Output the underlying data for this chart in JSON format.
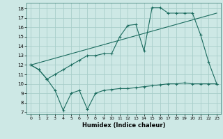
{
  "xlabel": "Humidex (Indice chaleur)",
  "background_color": "#cde8e5",
  "grid_color": "#a8ceca",
  "line_color": "#1a6b5e",
  "xlim": [
    -0.5,
    23.5
  ],
  "ylim": [
    6.8,
    18.6
  ],
  "yticks": [
    7,
    8,
    9,
    10,
    11,
    12,
    13,
    14,
    15,
    16,
    17,
    18
  ],
  "xticks": [
    0,
    1,
    2,
    3,
    4,
    5,
    6,
    7,
    8,
    9,
    10,
    11,
    12,
    13,
    14,
    15,
    16,
    17,
    18,
    19,
    20,
    21,
    22,
    23
  ],
  "line1_x": [
    0,
    1,
    2,
    3,
    4,
    5,
    6,
    7,
    8,
    9,
    10,
    11,
    12,
    13,
    14,
    15,
    16,
    17,
    18,
    19,
    20,
    21,
    22,
    23
  ],
  "line1_y": [
    12.0,
    11.5,
    10.5,
    9.3,
    7.2,
    9.0,
    9.3,
    7.3,
    9.0,
    9.3,
    9.4,
    9.5,
    9.5,
    9.6,
    9.7,
    9.8,
    9.9,
    10.0,
    10.0,
    10.1,
    10.0,
    10.0,
    10.0,
    10.0
  ],
  "line2_x": [
    0,
    1,
    2,
    3,
    4,
    5,
    6,
    7,
    8,
    9,
    10,
    11,
    12,
    13,
    14,
    15,
    16,
    17,
    18,
    19,
    20,
    21,
    22,
    23
  ],
  "line2_y": [
    12.0,
    11.5,
    10.5,
    11.0,
    11.5,
    12.0,
    12.5,
    13.0,
    13.0,
    13.2,
    13.2,
    15.0,
    16.2,
    16.3,
    13.5,
    18.1,
    18.1,
    17.5,
    17.5,
    17.5,
    17.5,
    15.2,
    12.3,
    10.0
  ],
  "line3_x": [
    0,
    23
  ],
  "line3_y": [
    12.0,
    17.5
  ]
}
